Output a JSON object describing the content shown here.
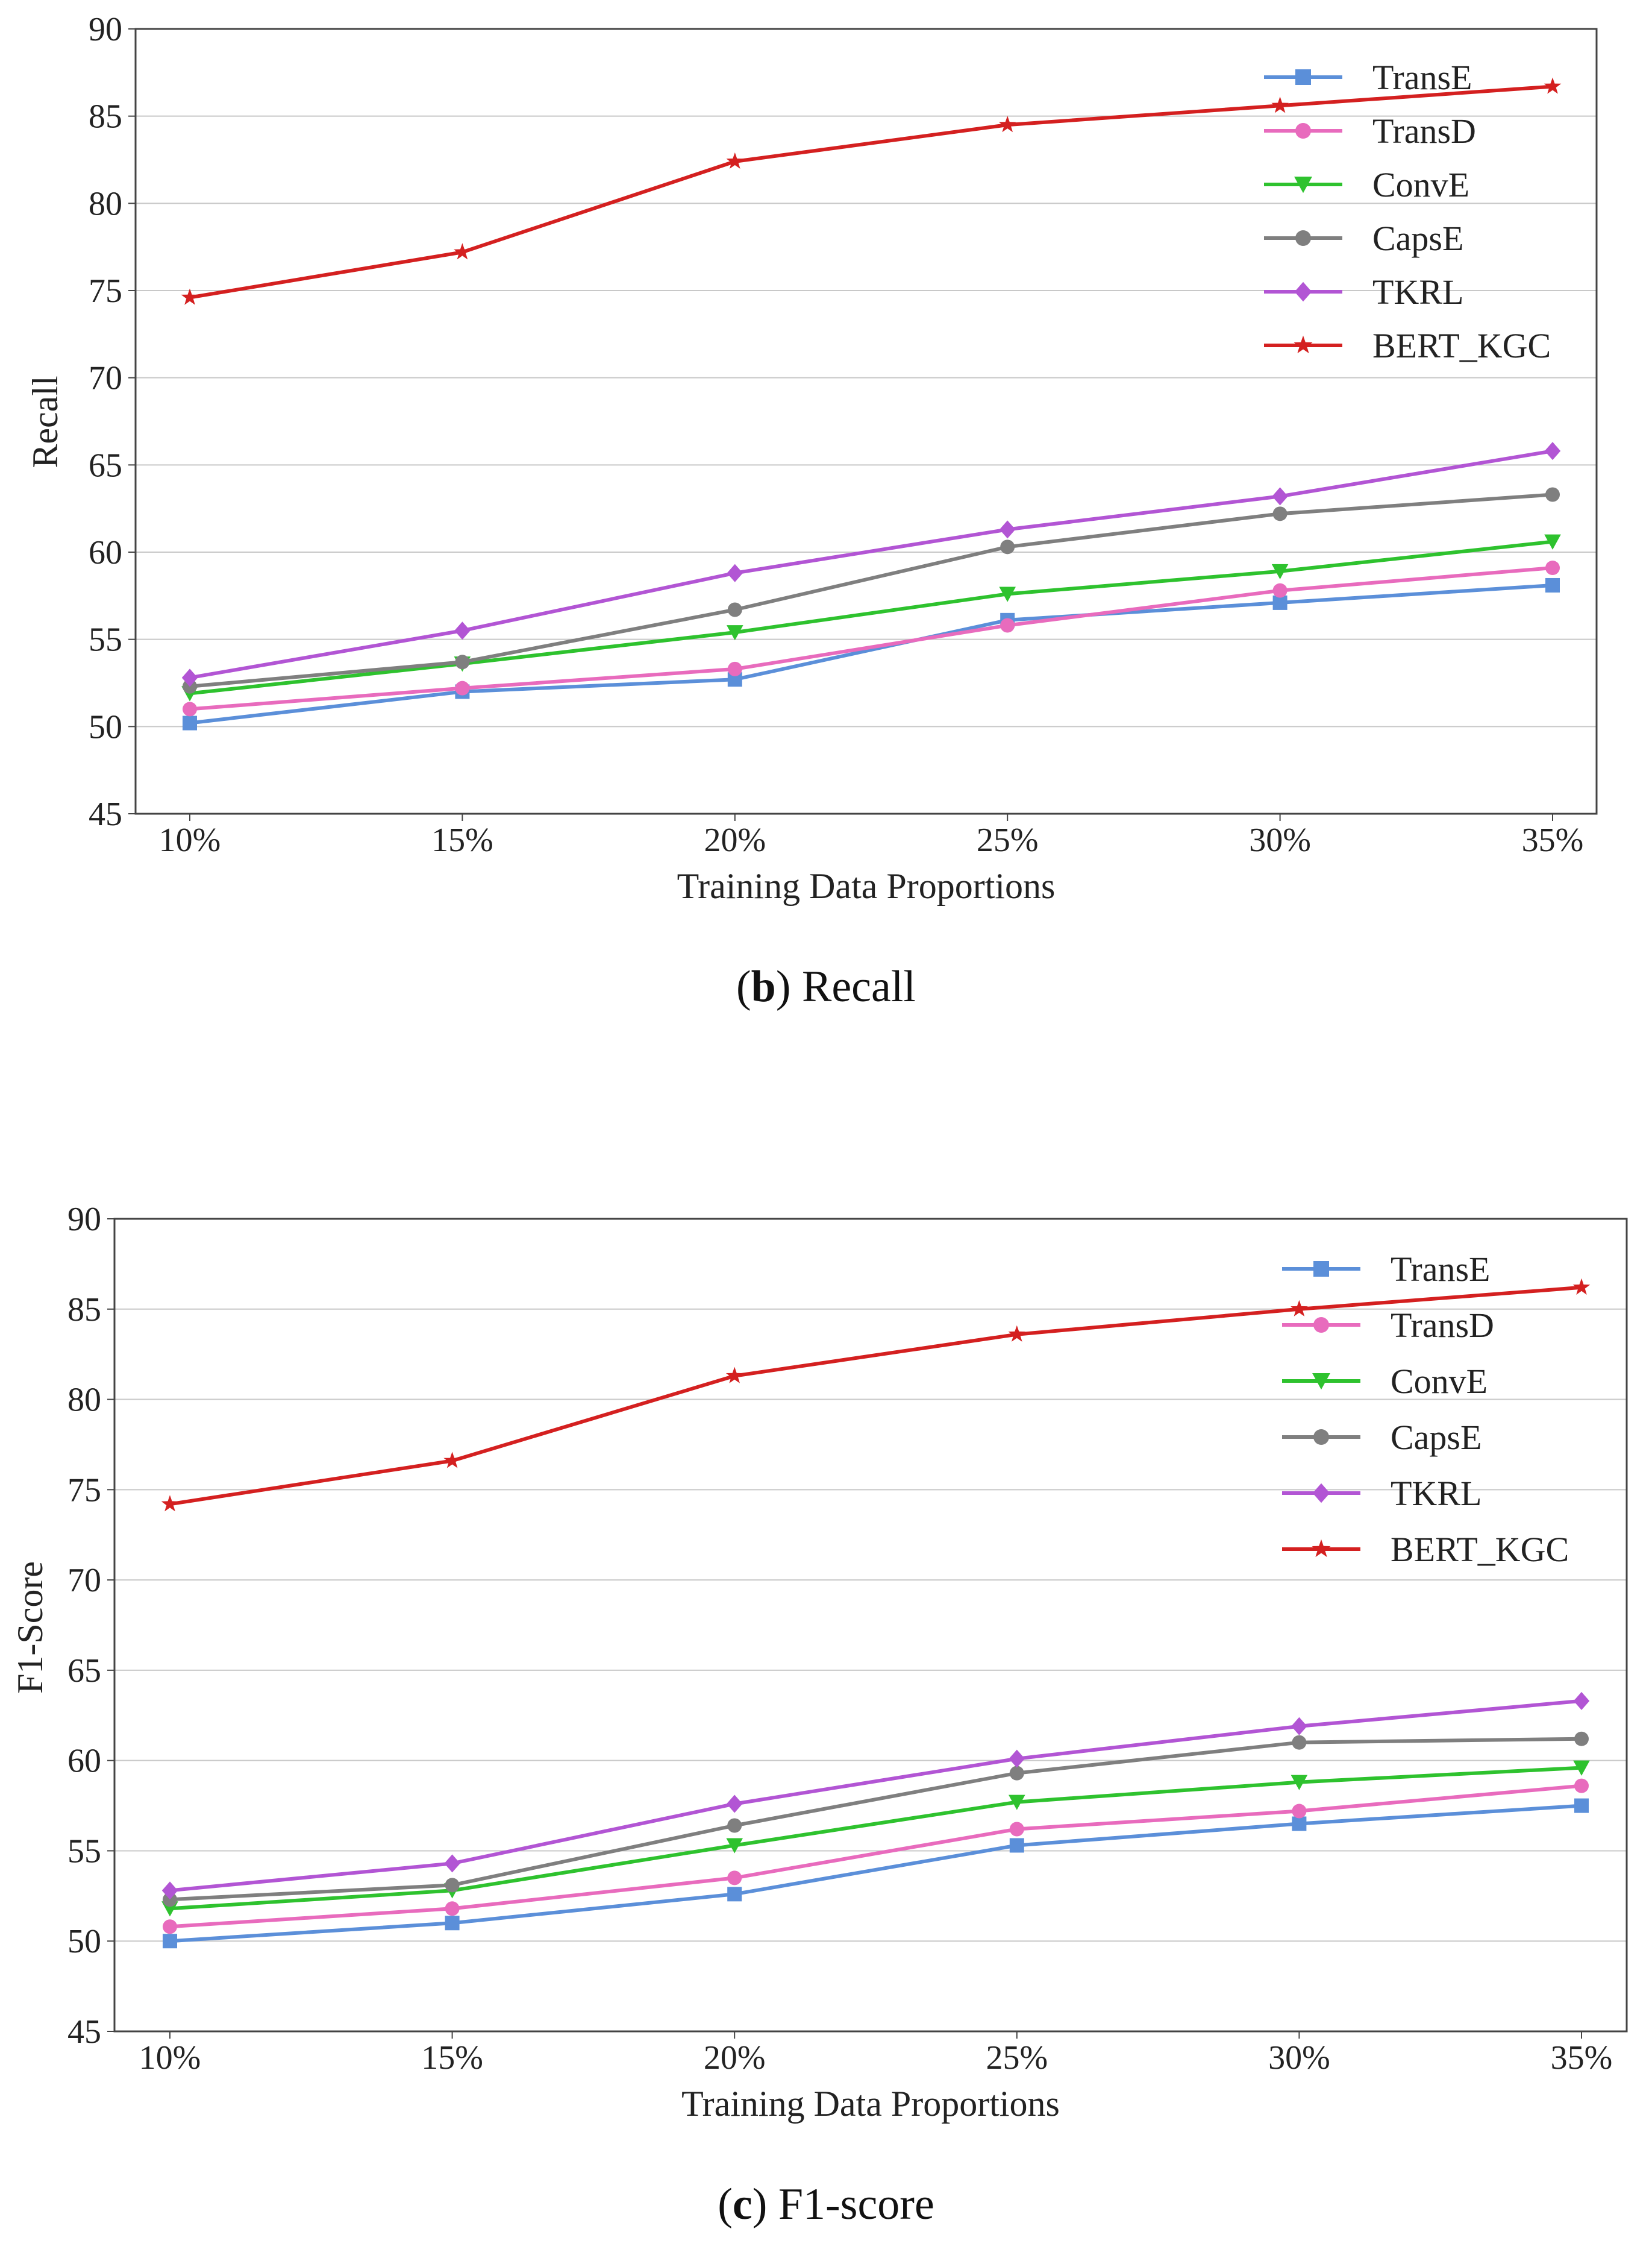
{
  "colors": {
    "TransE": "#5b8fd9",
    "TransD": "#e86bbd",
    "ConvE": "#2ec22e",
    "CapsE": "#7f7f7f",
    "TKRL": "#b255d4",
    "BERT_KGC": "#d42020"
  },
  "captions": [
    {
      "letter": "b",
      "text": "Recall"
    },
    {
      "letter": "c",
      "text": "F1-score"
    }
  ],
  "chart_data": [
    {
      "type": "line",
      "title": "",
      "xlabel": "Training Data Proportions",
      "ylabel": "Recall",
      "categories": [
        "10%",
        "15%",
        "20%",
        "25%",
        "30%",
        "35%"
      ],
      "ylim": [
        45,
        90
      ],
      "yticks": [
        45,
        50,
        55,
        60,
        65,
        70,
        75,
        80,
        85,
        90
      ],
      "grid": true,
      "legend_position": "top-right",
      "series": [
        {
          "name": "TransE",
          "marker": "square",
          "values": [
            50.2,
            52.0,
            52.7,
            56.1,
            57.1,
            58.1
          ]
        },
        {
          "name": "TransD",
          "marker": "circle",
          "values": [
            51.0,
            52.2,
            53.3,
            55.8,
            57.8,
            59.1
          ]
        },
        {
          "name": "ConvE",
          "marker": "triangle-down",
          "values": [
            51.9,
            53.6,
            55.4,
            57.6,
            58.9,
            60.6
          ]
        },
        {
          "name": "CapsE",
          "marker": "circle",
          "values": [
            52.3,
            53.7,
            56.7,
            60.3,
            62.2,
            63.3
          ]
        },
        {
          "name": "TKRL",
          "marker": "diamond",
          "values": [
            52.8,
            55.5,
            58.8,
            61.3,
            63.2,
            65.8
          ]
        },
        {
          "name": "BERT_KGC",
          "marker": "star",
          "values": [
            74.6,
            77.2,
            82.4,
            84.5,
            85.6,
            86.7
          ]
        }
      ]
    },
    {
      "type": "line",
      "title": "",
      "xlabel": "Training Data Proportions",
      "ylabel": "F1-Score",
      "categories": [
        "10%",
        "15%",
        "20%",
        "25%",
        "30%",
        "35%"
      ],
      "ylim": [
        45,
        90
      ],
      "yticks": [
        45,
        50,
        55,
        60,
        65,
        70,
        75,
        80,
        85,
        90
      ],
      "grid": true,
      "legend_position": "top-right",
      "series": [
        {
          "name": "TransE",
          "marker": "square",
          "values": [
            50.0,
            51.0,
            52.6,
            55.3,
            56.5,
            57.5
          ]
        },
        {
          "name": "TransD",
          "marker": "circle",
          "values": [
            50.8,
            51.8,
            53.5,
            56.2,
            57.2,
            58.6
          ]
        },
        {
          "name": "ConvE",
          "marker": "triangle-down",
          "values": [
            51.8,
            52.8,
            55.3,
            57.7,
            58.8,
            59.6
          ]
        },
        {
          "name": "CapsE",
          "marker": "circle",
          "values": [
            52.3,
            53.1,
            56.4,
            59.3,
            61.0,
            61.2
          ]
        },
        {
          "name": "TKRL",
          "marker": "diamond",
          "values": [
            52.8,
            54.3,
            57.6,
            60.1,
            61.9,
            63.3
          ]
        },
        {
          "name": "BERT_KGC",
          "marker": "star",
          "values": [
            74.2,
            76.6,
            81.3,
            83.6,
            85.0,
            86.2
          ]
        }
      ]
    }
  ]
}
